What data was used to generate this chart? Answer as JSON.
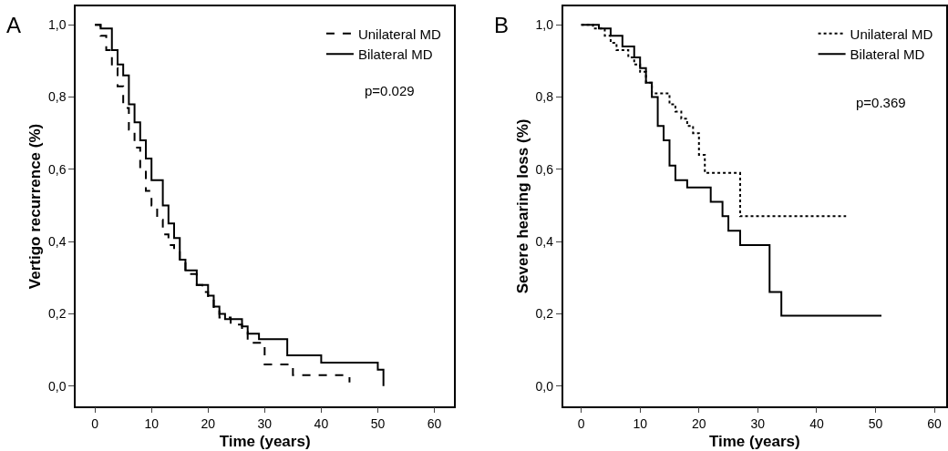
{
  "chart_data": [
    {
      "type": "step",
      "title": "A",
      "xlabel": "Time (years)",
      "ylabel": "Vertigo recurrence (%)",
      "xlim": [
        -3.4,
        63.5
      ],
      "xticks": [
        0,
        10,
        20,
        30,
        40,
        50,
        60
      ],
      "ylim": [
        -0.055,
        1.05
      ],
      "yticks": [
        {
          "value": 0,
          "label": "0,0"
        },
        {
          "value": 0.2,
          "label": "0,2"
        },
        {
          "value": 0.4,
          "label": "0,4"
        },
        {
          "value": 0.6,
          "label": "0,6"
        },
        {
          "value": 0.8,
          "label": "0,8"
        },
        {
          "value": 1.0,
          "label": "1,0"
        }
      ],
      "legend": "top right",
      "marker": "none",
      "annotations": [
        "p=0.029"
      ],
      "series": [
        {
          "name": "Unilateral MD",
          "color": "#000000",
          "line_style": "dashed",
          "x": [
            0,
            1,
            2,
            3,
            4,
            5,
            6,
            7,
            8,
            9,
            10,
            11,
            12,
            13,
            14,
            15,
            16,
            18,
            19,
            20,
            21,
            22,
            24,
            26,
            27,
            30,
            35,
            45
          ],
          "values": [
            1.0,
            0.97,
            0.93,
            0.88,
            0.83,
            0.77,
            0.71,
            0.66,
            0.6,
            0.54,
            0.5,
            0.46,
            0.42,
            0.39,
            0.37,
            0.34,
            0.31,
            0.28,
            0.26,
            0.24,
            0.21,
            0.19,
            0.17,
            0.15,
            0.12,
            0.06,
            0.03,
            0.01
          ]
        },
        {
          "name": "Bilateral MD",
          "color": "#000000",
          "line_style": "solid",
          "x": [
            0,
            1,
            3,
            4,
            5,
            6,
            7,
            8,
            9,
            10,
            12,
            13,
            14,
            15,
            16,
            18,
            20,
            21,
            22,
            23,
            26,
            27,
            29,
            34,
            40,
            50,
            51
          ],
          "values": [
            1.0,
            0.99,
            0.93,
            0.89,
            0.86,
            0.78,
            0.73,
            0.68,
            0.63,
            0.57,
            0.5,
            0.45,
            0.41,
            0.35,
            0.32,
            0.28,
            0.25,
            0.22,
            0.2,
            0.185,
            0.165,
            0.145,
            0.13,
            0.085,
            0.065,
            0.045,
            0.0
          ]
        }
      ]
    },
    {
      "type": "step",
      "title": "B",
      "xlabel": "Time (years)",
      "ylabel": "Severe hearing loss (%)",
      "xlim": [
        -3.1,
        62
      ],
      "xticks": [
        0,
        10,
        20,
        30,
        40,
        50,
        60
      ],
      "ylim": [
        -0.055,
        1.05
      ],
      "yticks": [
        {
          "value": 0,
          "label": "0,0"
        },
        {
          "value": 0.2,
          "label": "0,2"
        },
        {
          "value": 0.4,
          "label": "0,4"
        },
        {
          "value": 0.6,
          "label": "0,6"
        },
        {
          "value": 0.8,
          "label": "0,8"
        },
        {
          "value": 1.0,
          "label": "1,0"
        }
      ],
      "legend": "top right",
      "marker": "none",
      "annotations": [
        "p=0.369"
      ],
      "series": [
        {
          "name": "Unilateral MD",
          "color": "#000000",
          "line_style": "dotted",
          "x": [
            0,
            2,
            4,
            5,
            6,
            8,
            9,
            10,
            11,
            12,
            15,
            16,
            17,
            18,
            19,
            20,
            21,
            27,
            45
          ],
          "values": [
            1.0,
            0.99,
            0.97,
            0.95,
            0.93,
            0.91,
            0.89,
            0.87,
            0.84,
            0.81,
            0.78,
            0.76,
            0.74,
            0.72,
            0.7,
            0.64,
            0.59,
            0.47,
            0.47
          ]
        },
        {
          "name": "Bilateral MD",
          "color": "#000000",
          "line_style": "solid",
          "x": [
            0,
            3,
            5,
            7,
            9,
            10,
            11,
            12,
            13,
            14,
            15,
            16,
            18,
            22,
            24,
            25,
            27,
            32,
            34,
            51
          ],
          "values": [
            1.0,
            0.99,
            0.97,
            0.94,
            0.91,
            0.88,
            0.84,
            0.8,
            0.72,
            0.68,
            0.61,
            0.57,
            0.55,
            0.51,
            0.47,
            0.43,
            0.39,
            0.26,
            0.195,
            0.195
          ]
        }
      ]
    }
  ]
}
